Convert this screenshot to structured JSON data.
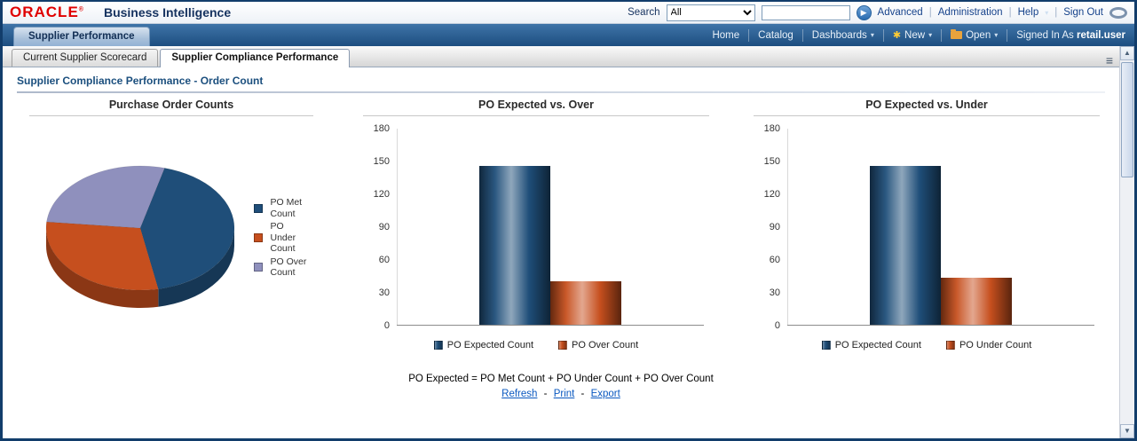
{
  "topbar": {
    "logo": "ORACLE",
    "registered": "®",
    "product": "Business Intelligence",
    "search_label": "Search",
    "search_scope": "All",
    "search_value": "",
    "links": [
      "Advanced",
      "Administration",
      "Help",
      "Sign Out"
    ]
  },
  "brandbar": {
    "dashboard_tab": "Supplier Performance",
    "home_label": "Home",
    "catalog_label": "Catalog",
    "dashboards_label": "Dashboards",
    "new_label": "New",
    "open_label": "Open",
    "signed_in_label": "Signed In As",
    "user_name": "retail.user"
  },
  "page_tabs": [
    {
      "label": "Current Supplier Scorecard",
      "active": false
    },
    {
      "label": "Supplier Compliance Performance",
      "active": true
    }
  ],
  "content": {
    "title": "Supplier Compliance Performance - Order Count",
    "footnote": "PO Expected = PO Met Count + PO Under Count + PO Over Count",
    "action_links": [
      "Refresh",
      "Print",
      "Export"
    ],
    "action_separator": "-"
  },
  "icons": {
    "caret_down": "▾",
    "go_arrow": "▶",
    "menu": "≡",
    "scroll_up": "▲",
    "scroll_down": "▼",
    "new_star": "✱",
    "pipe": "|"
  },
  "colors": {
    "expected_blue": "#1f4e79",
    "over_under_orange": "#c64f1e",
    "over_purple": "#8f90bd",
    "brand_navy": "#1d4e80",
    "oracle_red": "#e00000",
    "link_blue": "#0a58c0"
  },
  "chart_data": [
    {
      "type": "pie",
      "title": "Purchase Order Counts",
      "labels": [
        "PO Met Count",
        "PO Under Count",
        "PO Over Count"
      ],
      "values": [
        62,
        43,
        40
      ],
      "colors": [
        "#1f4e79",
        "#c64f1e",
        "#8f90bd"
      ],
      "legend_position": "right"
    },
    {
      "type": "bar",
      "title": "PO Expected vs. Over",
      "categories": [
        "PO Expected Count",
        "PO Over Count"
      ],
      "values": [
        145,
        40
      ],
      "colors": [
        "#1f4e79",
        "#c64f1e"
      ],
      "ylim": [
        0,
        180
      ],
      "ytick_step": 30,
      "grid": false,
      "legend_position": "bottom"
    },
    {
      "type": "bar",
      "title": "PO Expected vs. Under",
      "categories": [
        "PO Expected Count",
        "PO Under Count"
      ],
      "values": [
        145,
        43
      ],
      "colors": [
        "#1f4e79",
        "#c64f1e"
      ],
      "ylim": [
        0,
        180
      ],
      "ytick_step": 30,
      "grid": false,
      "legend_position": "bottom"
    }
  ]
}
